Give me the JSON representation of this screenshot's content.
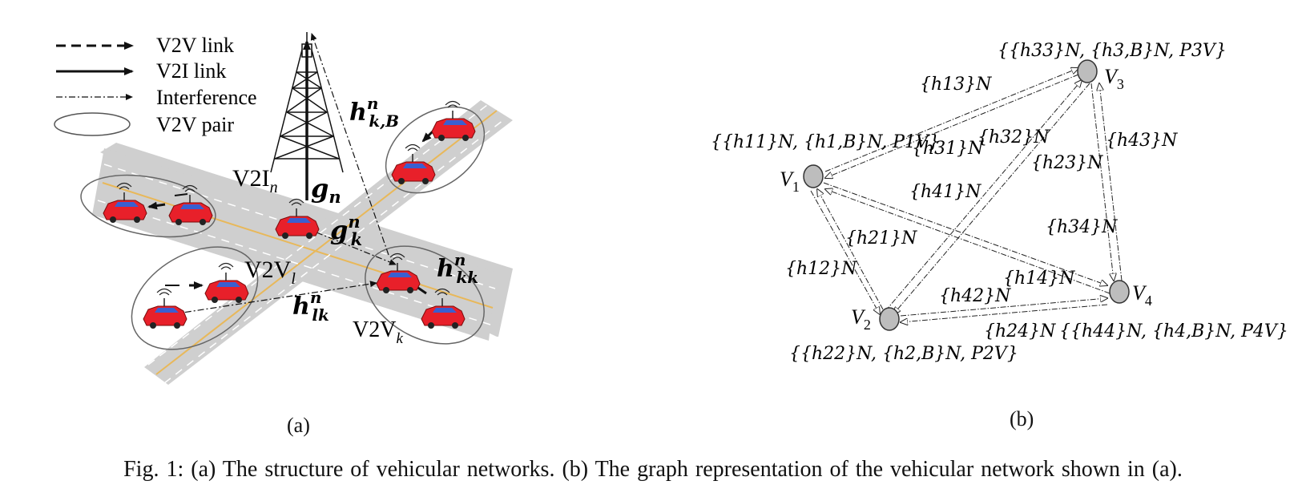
{
  "figure": {
    "caption": "Fig. 1: (a) The structure of vehicular networks. (b) The graph representation of the vehicular network shown in (a).",
    "sub_a_label": "(a)",
    "sub_b_label": "(b)"
  },
  "panel_a": {
    "legend": [
      {
        "label": "V2V link",
        "style": "dashed-arrow"
      },
      {
        "label": "V2I link",
        "style": "solid-arrow"
      },
      {
        "label": "Interference",
        "style": "dashdot-arrow"
      },
      {
        "label": "V2V pair",
        "style": "ellipse"
      }
    ],
    "labels": {
      "v2i_main": "V2I",
      "v2i_sub": "n",
      "g_n_main": "g",
      "g_n_sub": "n",
      "g_kn_main": "g",
      "g_kn_sup": "n",
      "g_kn_sub": "k",
      "h_kB_main": "h",
      "h_kB_sup": "n",
      "h_kB_sub": "k,B",
      "h_kk_main": "h",
      "h_kk_sup": "n",
      "h_kk_sub": "kk",
      "h_lk_main": "h",
      "h_lk_sup": "n",
      "h_lk_sub": "lk",
      "v2vl_main": "V2V",
      "v2vl_sub": "l",
      "v2vk_main": "V2V",
      "v2vk_sub": "k"
    },
    "colors": {
      "car": "#e8202a",
      "road": "#cfcfcf",
      "lane_center": "#e8b85a"
    }
  },
  "panel_b": {
    "nodes": [
      {
        "id": "V1",
        "main": "V",
        "sub": "1"
      },
      {
        "id": "V2",
        "main": "V",
        "sub": "2"
      },
      {
        "id": "V3",
        "main": "V",
        "sub": "3"
      },
      {
        "id": "V4",
        "main": "V",
        "sub": "4"
      }
    ],
    "edge_labels": {
      "h13": "{h13}N",
      "h31": "{h31}N",
      "h32": "{h32}N",
      "h23": "{h23}N",
      "h43": "{h43}N",
      "h41": "{h41}N",
      "h34": "{h34}N",
      "h21": "{h21}N",
      "h12": "{h12}N",
      "h14": "{h14}N",
      "h42": "{h42}N",
      "h24": "{h24}N"
    },
    "node_labels": {
      "n1": "{{h11}N, {h1,B}N, P1V}",
      "n2": "{{h22}N, {h2,B}N, P2V}",
      "n3": "{{h33}N, {h3,B}N, P3V}",
      "n4": "{{h44}N, {h4,B}N, P4V}"
    },
    "colors": {
      "node_fill": "#bdbdbd",
      "node_stroke": "#333333"
    }
  }
}
